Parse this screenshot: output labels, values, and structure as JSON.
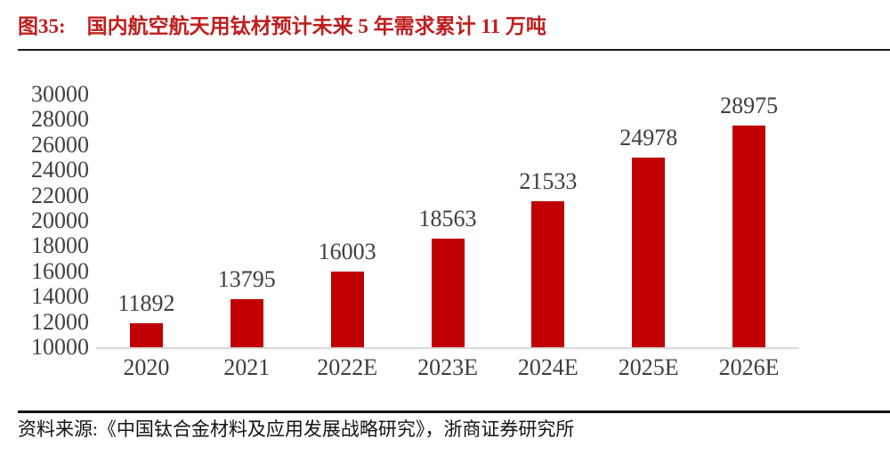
{
  "figure": {
    "label": "图35:"
  },
  "chart_data": {
    "type": "bar",
    "title": "国内航空航天用钛材预计未来 5 年需求累计 11 万吨",
    "categories": [
      "2020",
      "2021",
      "2022E",
      "2023E",
      "2024E",
      "2025E",
      "2026E"
    ],
    "values": [
      11892,
      13795,
      16003,
      18563,
      21533,
      24978,
      28975
    ],
    "value_labels": [
      "11892",
      "13795",
      "16003",
      "18563",
      "21533",
      "24978",
      "28975"
    ],
    "ylim": [
      10000,
      30000
    ],
    "ytick_step": 2000,
    "yticks": [
      10000,
      12000,
      14000,
      16000,
      18000,
      20000,
      22000,
      24000,
      26000,
      28000,
      30000
    ],
    "xlabel": "",
    "ylabel": "",
    "grid": false,
    "legend_position": "none",
    "bar_color": "#c00000",
    "axis_line_color": "#d9d9d9",
    "tick_label_color": "#414148",
    "title_color": "#bf1e1e"
  },
  "source": {
    "text": "资料来源:《中国钛合金材料及应用发展战略研究》，浙商证券研究所"
  }
}
